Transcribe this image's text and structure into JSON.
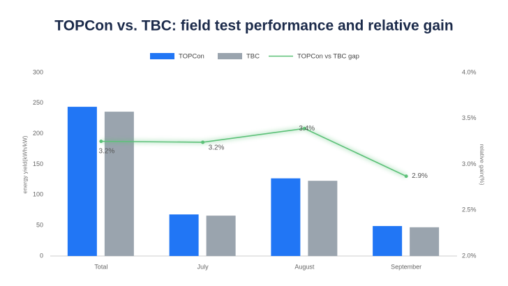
{
  "chart_data": {
    "type": "bar_line",
    "title": "TOPCon vs. TBC: field test performance and relative gain",
    "y_label": "energy yield(kWh/kW)",
    "y2_label": "relative gain(%)",
    "categories": [
      "Total",
      "July",
      "August",
      "September"
    ],
    "series": [
      {
        "name": "TOPCon",
        "type": "bar",
        "color": "#2176f5",
        "values": [
          244,
          68,
          127,
          49
        ]
      },
      {
        "name": "TBC",
        "type": "bar",
        "color": "#9aa4ae",
        "values": [
          236,
          66,
          123,
          47
        ]
      },
      {
        "name": "TOPCon vs TBC gap",
        "type": "line",
        "axis": "y2",
        "color": "#5cc178",
        "values": [
          3.25,
          3.24,
          3.39,
          2.87
        ],
        "value_labels": [
          "3.2%",
          "3.2%",
          "3.4%",
          "2.9%"
        ]
      }
    ],
    "ylim": [
      0,
      300
    ],
    "yticks": [
      0,
      50,
      100,
      150,
      200,
      250,
      300
    ],
    "y2lim": [
      2.0,
      4.0
    ],
    "y2ticks": [
      {
        "value": 2.0,
        "label": "2.0%"
      },
      {
        "value": 2.5,
        "label": "2.5%"
      },
      {
        "value": 3.0,
        "label": "3.0%"
      },
      {
        "value": 3.5,
        "label": "3.5%"
      },
      {
        "value": 4.0,
        "label": "4.0%"
      }
    ],
    "grid": false,
    "legend": "top"
  }
}
